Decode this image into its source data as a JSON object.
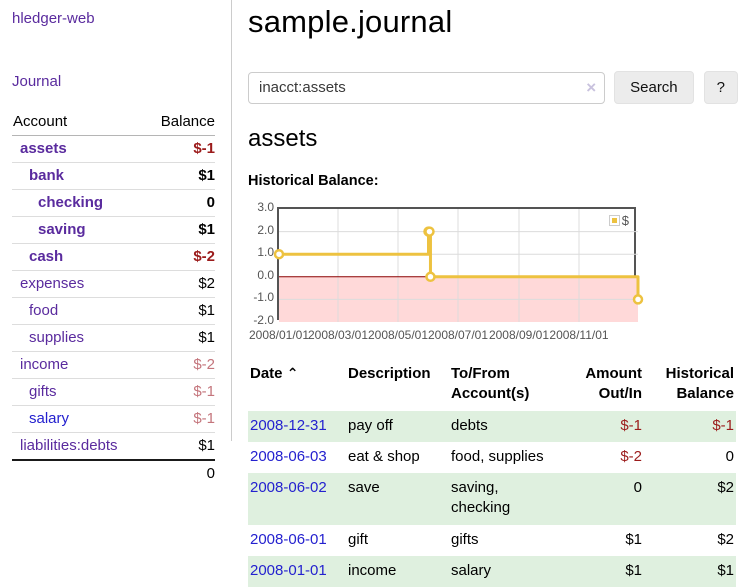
{
  "app": {
    "title": "hledger-web"
  },
  "sidebar": {
    "journal_link": "Journal",
    "accounts_table": {
      "headers": {
        "account": "Account",
        "balance": "Balance"
      },
      "rows": [
        {
          "label": "assets",
          "depth": 1,
          "bold": true,
          "link_tone": "visited",
          "balance": "$-1",
          "balance_tone": "negative"
        },
        {
          "label": "bank",
          "depth": 2,
          "bold": true,
          "link_tone": "visited",
          "balance": "$1",
          "balance_tone": "normal"
        },
        {
          "label": "checking",
          "depth": 3,
          "bold": true,
          "link_tone": "visited",
          "balance": "0",
          "balance_tone": "normal"
        },
        {
          "label": "saving",
          "depth": 3,
          "bold": true,
          "link_tone": "visited",
          "balance": "$1",
          "balance_tone": "normal"
        },
        {
          "label": "cash",
          "depth": 2,
          "bold": true,
          "link_tone": "visited",
          "balance": "$-2",
          "balance_tone": "negative"
        },
        {
          "label": "expenses",
          "depth": 1,
          "bold": false,
          "link_tone": "visited",
          "balance": "$2",
          "balance_tone": "normal"
        },
        {
          "label": "food",
          "depth": 2,
          "bold": false,
          "link_tone": "visited",
          "balance": "$1",
          "balance_tone": "normal"
        },
        {
          "label": "supplies",
          "depth": 2,
          "bold": false,
          "link_tone": "visited",
          "balance": "$1",
          "balance_tone": "normal"
        },
        {
          "label": "income",
          "depth": 1,
          "bold": false,
          "link_tone": "visited",
          "balance": "$-2",
          "balance_tone": "negative-soft"
        },
        {
          "label": "gifts",
          "depth": 2,
          "bold": false,
          "link_tone": "visited",
          "balance": "$-1",
          "balance_tone": "negative-soft"
        },
        {
          "label": "salary",
          "depth": 2,
          "bold": false,
          "link_tone": "unvisited",
          "balance": "$-1",
          "balance_tone": "negative-soft"
        },
        {
          "label": "liabilities:debts",
          "depth": 1,
          "bold": false,
          "link_tone": "visited",
          "balance": "$1",
          "balance_tone": "normal"
        }
      ],
      "total": "0"
    }
  },
  "header": {
    "title": "sample.journal"
  },
  "search": {
    "value": "inacct:assets",
    "clear_icon": "×",
    "button_label": "Search",
    "help_label": "?"
  },
  "account_page": {
    "title": "assets",
    "chart_label": "Historical Balance:"
  },
  "chart_data": {
    "type": "line",
    "step": true,
    "title": "Historical Balance:",
    "series": [
      {
        "name": "$",
        "color": "#edc240",
        "points": [
          [
            "2008-01-01",
            1
          ],
          [
            "2008-06-01",
            2
          ],
          [
            "2008-06-02",
            2
          ],
          [
            "2008-06-03",
            0
          ],
          [
            "2008-12-31",
            -1
          ]
        ]
      }
    ],
    "xrange": [
      "2008-01-01",
      "2008-12-31"
    ],
    "ylim": [
      -2,
      3
    ],
    "yticks": [
      {
        "label": "3.0",
        "value": 3
      },
      {
        "label": "2.0",
        "value": 2
      },
      {
        "label": "1.0",
        "value": 1
      },
      {
        "label": "0.0",
        "value": 0
      },
      {
        "label": "-1.0",
        "value": -1
      },
      {
        "label": "-2.0",
        "value": -2
      }
    ],
    "xticks": [
      {
        "label": "2008/01/01",
        "date": "2008-01-01"
      },
      {
        "label": "2008/03/01",
        "date": "2008-03-01"
      },
      {
        "label": "2008/05/01",
        "date": "2008-05-01"
      },
      {
        "label": "2008/07/01",
        "date": "2008-07-01"
      },
      {
        "label": "2008/09/01",
        "date": "2008-09-01"
      },
      {
        "label": "2008/11/01",
        "date": "2008-11-01"
      }
    ],
    "grid": true,
    "legend_position": "top-right",
    "negative_region_color": "#ffd9d9",
    "zero_line_color": "#8b0000",
    "grid_color": "#dcdcdc",
    "border_color": "#545454"
  },
  "register_table": {
    "headers": {
      "date": "Date",
      "sort_icon": "⌃",
      "description": "Description",
      "accounts": "To/From\nAccount(s)",
      "amount": "Amount\nOut/In",
      "balance": "Historical\nBalance"
    },
    "rows": [
      {
        "date": "2008-12-31",
        "description": "pay off",
        "accounts": "debts",
        "amount": "$-1",
        "amount_tone": "negative",
        "balance": "$-1",
        "balance_tone": "negative"
      },
      {
        "date": "2008-06-03",
        "description": "eat & shop",
        "accounts": "food, supplies",
        "amount": "$-2",
        "amount_tone": "negative",
        "balance": "0",
        "balance_tone": "normal"
      },
      {
        "date": "2008-06-02",
        "description": "save",
        "accounts": "saving,\nchecking",
        "amount": "0",
        "amount_tone": "normal",
        "balance": "$2",
        "balance_tone": "normal"
      },
      {
        "date": "2008-06-01",
        "description": "gift",
        "accounts": "gifts",
        "amount": "$1",
        "amount_tone": "normal",
        "balance": "$2",
        "balance_tone": "normal"
      },
      {
        "date": "2008-01-01",
        "description": "income",
        "accounts": "salary",
        "amount": "$1",
        "amount_tone": "normal",
        "balance": "$1",
        "balance_tone": "normal"
      }
    ]
  }
}
